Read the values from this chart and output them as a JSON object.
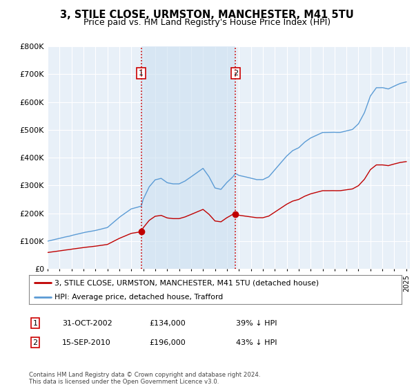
{
  "title": "3, STILE CLOSE, URMSTON, MANCHESTER, M41 5TU",
  "subtitle": "Price paid vs. HM Land Registry's House Price Index (HPI)",
  "ylim": [
    0,
    800000
  ],
  "yticks": [
    0,
    100000,
    200000,
    300000,
    400000,
    500000,
    600000,
    700000,
    800000
  ],
  "background_color": "#e8f0f8",
  "shade_color": "#cce0f0",
  "grid_color": "#ffffff",
  "hpi_color": "#5b9bd5",
  "price_color": "#c00000",
  "purchase1_date": 2002.83,
  "purchase1_price": 134000,
  "purchase2_date": 2010.71,
  "purchase2_price": 196000,
  "legend_line1": "3, STILE CLOSE, URMSTON, MANCHESTER, M41 5TU (detached house)",
  "legend_line2": "HPI: Average price, detached house, Trafford",
  "table_entries": [
    {
      "num": "1",
      "date": "31-OCT-2002",
      "price": "£134,000",
      "pct": "39% ↓ HPI"
    },
    {
      "num": "2",
      "date": "15-SEP-2010",
      "price": "£196,000",
      "pct": "43% ↓ HPI"
    }
  ],
  "footer": "Contains HM Land Registry data © Crown copyright and database right 2024.\nThis data is licensed under the Open Government Licence v3.0."
}
